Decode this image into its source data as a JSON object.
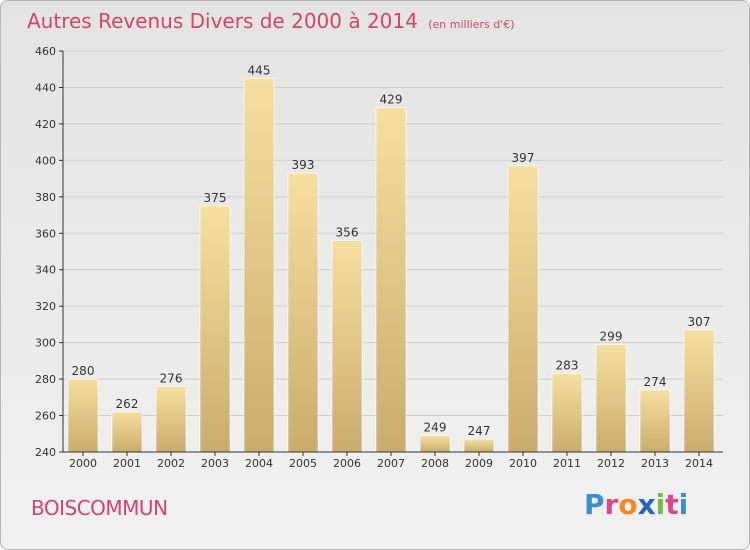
{
  "header": {
    "title": "Autres Revenus Divers de 2000 à 2014",
    "subtitle": "(en milliers d'€)"
  },
  "footer": {
    "town": "BOISCOMMUN",
    "logo_letters": [
      "P",
      "r",
      "o",
      "x",
      "i",
      "t",
      "i"
    ],
    "logo_colors": [
      "#3a8fd0",
      "#e0468a",
      "#f08a1c",
      "#2a63b8",
      "#7ab648",
      "#e0468a",
      "#3a8fd0"
    ]
  },
  "colors": {
    "title": "#d2446d",
    "bar_light": "#f5dfa0",
    "bar_dark": "#c9ac6e",
    "axis": "#333333",
    "grid": "#cfcfcf"
  },
  "chart_data": {
    "type": "bar",
    "categories": [
      "2000",
      "2001",
      "2002",
      "2003",
      "2004",
      "2005",
      "2006",
      "2007",
      "2008",
      "2009",
      "2010",
      "2011",
      "2012",
      "2013",
      "2014"
    ],
    "values": [
      280,
      262,
      276,
      375,
      445,
      393,
      356,
      429,
      249,
      247,
      397,
      283,
      299,
      274,
      307
    ],
    "data_labels": [
      "280",
      "262",
      "276",
      "375",
      "445",
      "393",
      "356",
      "429",
      "249",
      "247",
      "397",
      "283",
      "299",
      "274",
      "307"
    ],
    "title": "Autres Revenus Divers de 2000 à 2014",
    "ylim": [
      240,
      460
    ],
    "yticks": [
      240,
      260,
      280,
      300,
      320,
      340,
      360,
      380,
      400,
      420,
      440,
      460
    ],
    "grid": true,
    "legend": "none"
  }
}
